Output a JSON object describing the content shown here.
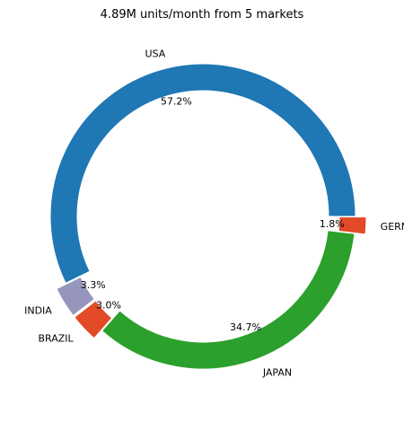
{
  "chart_data": {
    "type": "pie",
    "style": "donut",
    "title": "4.89M units/month from 5 markets",
    "categories": [
      "USA",
      "INDIA",
      "BRAZIL",
      "JAPAN",
      "GERMANY"
    ],
    "values": [
      57.2,
      3.3,
      3.0,
      34.7,
      1.8
    ],
    "value_labels": [
      "57.2%",
      "3.3%",
      "3.0%",
      "34.7%",
      "1.8%"
    ],
    "exploded": [
      false,
      true,
      true,
      false,
      true
    ],
    "colors": [
      "#1f77b4",
      "#9696bd",
      "#e24a28",
      "#2ca02c",
      "#e24a28"
    ],
    "start_angle_deg": 0,
    "direction": "counterclockwise"
  }
}
